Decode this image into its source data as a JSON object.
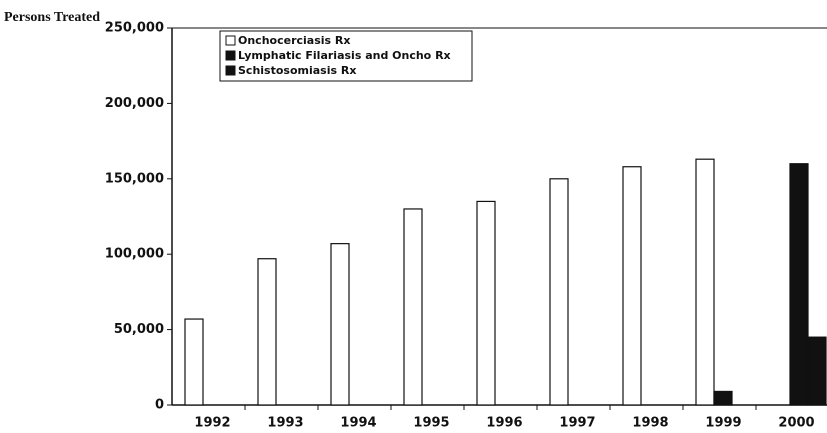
{
  "chart_data": {
    "type": "bar",
    "y_axis_label": "Persons Treated",
    "categories": [
      "1992",
      "1993",
      "1994",
      "1995",
      "1996",
      "1997",
      "1998",
      "1999",
      "2000"
    ],
    "series": [
      {
        "name": "Onchocerciasis Rx",
        "color": "#ffffff",
        "values": [
          57000,
          97000,
          107000,
          130000,
          135000,
          150000,
          158000,
          163000,
          null
        ]
      },
      {
        "name": "Lymphatic Filariasis and Oncho Rx",
        "color": "#111111",
        "values": [
          null,
          null,
          null,
          null,
          null,
          null,
          null,
          9000,
          160000
        ]
      },
      {
        "name": "Schistosomiasis Rx",
        "color": "#111111",
        "values": [
          null,
          null,
          null,
          null,
          null,
          null,
          null,
          null,
          45000
        ]
      }
    ],
    "ylim": [
      0,
      250000
    ],
    "yticks": [
      0,
      {
        "value": 50000,
        "label": "50,000"
      },
      {
        "value": 100000,
        "label": "100,000"
      },
      {
        "value": 150000,
        "label": "150,000"
      },
      {
        "value": 200000,
        "label": "200,000"
      },
      {
        "value": 250000,
        "label": "250,000"
      }
    ],
    "grid": false
  }
}
